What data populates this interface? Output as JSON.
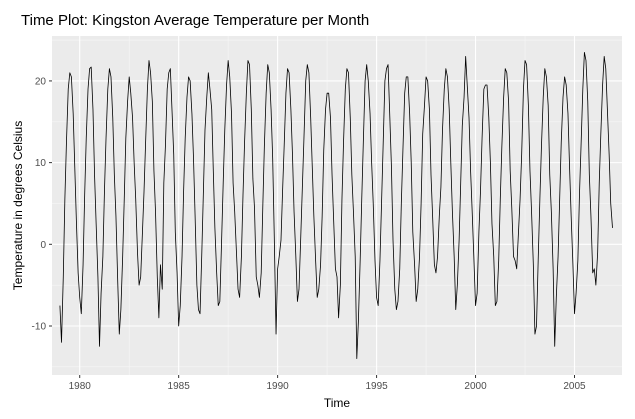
{
  "chart_data": {
    "type": "line",
    "title": "Time Plot: Kingston Average Temperature per Month",
    "xlabel": "Time",
    "ylabel": "Temperature in degrees Celsius",
    "xlim": [
      1978.6,
      2007.4
    ],
    "ylim": [
      -16.0,
      25.5
    ],
    "x_ticks": [
      1980,
      1985,
      1990,
      1995,
      2000,
      2005
    ],
    "x_tick_labels": [
      "1980",
      "1985",
      "1990",
      "1995",
      "2000",
      "2005"
    ],
    "y_ticks": [
      -10,
      0,
      10,
      20
    ],
    "y_tick_labels": [
      "-10",
      "0",
      "10",
      "20"
    ],
    "grid": true,
    "legend": "none",
    "colors": {
      "panel": "#ebebeb",
      "grid_major": "#ffffff",
      "line": "#000000",
      "tick": "#4d4d4d"
    },
    "series": [
      {
        "x": [
          1979.0,
          1979.08,
          1979.17,
          1979.25,
          1979.33,
          1979.42,
          1979.5,
          1979.58,
          1979.67,
          1979.75,
          1979.83,
          1979.92,
          1980.0,
          1980.08,
          1980.17,
          1980.25,
          1980.33,
          1980.42,
          1980.5,
          1980.58,
          1980.67,
          1980.75,
          1980.83,
          1980.92,
          1981.0,
          1981.08,
          1981.17,
          1981.25,
          1981.33,
          1981.42,
          1981.5,
          1981.58,
          1981.67,
          1981.75,
          1981.83,
          1981.92,
          1982.0,
          1982.08,
          1982.17,
          1982.25,
          1982.33,
          1982.42,
          1982.5,
          1982.58,
          1982.67,
          1982.75,
          1982.83,
          1982.92,
          1983.0,
          1983.08,
          1983.17,
          1983.25,
          1983.33,
          1983.42,
          1983.5,
          1983.58,
          1983.67,
          1983.75,
          1983.83,
          1983.92,
          1984.0,
          1984.08,
          1984.17,
          1984.25,
          1984.33,
          1984.42,
          1984.5,
          1984.58,
          1984.67,
          1984.75,
          1984.83,
          1984.92,
          1985.0,
          1985.08,
          1985.17,
          1985.25,
          1985.33,
          1985.42,
          1985.5,
          1985.58,
          1985.67,
          1985.75,
          1985.83,
          1985.92,
          1986.0,
          1986.08,
          1986.17,
          1986.25,
          1986.33,
          1986.42,
          1986.5,
          1986.58,
          1986.67,
          1986.75,
          1986.83,
          1986.92,
          1987.0,
          1987.08,
          1987.17,
          1987.25,
          1987.33,
          1987.42,
          1987.5,
          1987.58,
          1987.67,
          1987.75,
          1987.83,
          1987.92,
          1988.0,
          1988.08,
          1988.17,
          1988.25,
          1988.33,
          1988.42,
          1988.5,
          1988.58,
          1988.67,
          1988.75,
          1988.83,
          1988.92,
          1989.0,
          1989.08,
          1989.17,
          1989.25,
          1989.33,
          1989.42,
          1989.5,
          1989.58,
          1989.67,
          1989.75,
          1989.83,
          1989.92,
          1990.0,
          1990.08,
          1990.17,
          1990.25,
          1990.33,
          1990.42,
          1990.5,
          1990.58,
          1990.67,
          1990.75,
          1990.83,
          1990.92,
          1991.0,
          1991.08,
          1991.17,
          1991.25,
          1991.33,
          1991.42,
          1991.5,
          1991.58,
          1991.67,
          1991.75,
          1991.83,
          1991.92,
          1992.0,
          1992.08,
          1992.17,
          1992.25,
          1992.33,
          1992.42,
          1992.5,
          1992.58,
          1992.67,
          1992.75,
          1992.83,
          1992.92,
          1993.0,
          1993.08,
          1993.17,
          1993.25,
          1993.33,
          1993.42,
          1993.5,
          1993.58,
          1993.67,
          1993.75,
          1993.83,
          1993.92,
          1994.0,
          1994.08,
          1994.17,
          1994.25,
          1994.33,
          1994.42,
          1994.5,
          1994.58,
          1994.67,
          1994.75,
          1994.83,
          1994.92,
          1995.0,
          1995.08,
          1995.17,
          1995.25,
          1995.33,
          1995.42,
          1995.5,
          1995.58,
          1995.67,
          1995.75,
          1995.83,
          1995.92,
          1996.0,
          1996.08,
          1996.17,
          1996.25,
          1996.33,
          1996.42,
          1996.5,
          1996.58,
          1996.67,
          1996.75,
          1996.83,
          1996.92,
          1997.0,
          1997.08,
          1997.17,
          1997.25,
          1997.33,
          1997.42,
          1997.5,
          1997.58,
          1997.67,
          1997.75,
          1997.83,
          1997.92,
          1998.0,
          1998.08,
          1998.17,
          1998.25,
          1998.33,
          1998.42,
          1998.5,
          1998.58,
          1998.67,
          1998.75,
          1998.83,
          1998.92,
          1999.0,
          1999.08,
          1999.17,
          1999.25,
          1999.33,
          1999.42,
          1999.5,
          1999.58,
          1999.67,
          1999.75,
          1999.83,
          1999.92,
          2000.0,
          2000.08,
          2000.17,
          2000.25,
          2000.33,
          2000.42,
          2000.5,
          2000.58,
          2000.67,
          2000.75,
          2000.83,
          2000.92,
          2001.0,
          2001.08,
          2001.17,
          2001.25,
          2001.33,
          2001.42,
          2001.5,
          2001.58,
          2001.67,
          2001.75,
          2001.83,
          2001.92,
          2002.0,
          2002.08,
          2002.17,
          2002.25,
          2002.33,
          2002.42,
          2002.5,
          2002.58,
          2002.67,
          2002.75,
          2002.83,
          2002.92,
          2003.0,
          2003.08,
          2003.17,
          2003.25,
          2003.33,
          2003.42,
          2003.5,
          2003.58,
          2003.67,
          2003.75,
          2003.83,
          2003.92,
          2004.0,
          2004.08,
          2004.17,
          2004.25,
          2004.33,
          2004.42,
          2004.5,
          2004.58,
          2004.67,
          2004.75,
          2004.83,
          2004.92,
          2005.0,
          2005.08,
          2005.17,
          2005.25,
          2005.33,
          2005.42,
          2005.5,
          2005.58,
          2005.67,
          2005.75,
          2005.83,
          2005.92,
          2006.0,
          2006.08,
          2006.17,
          2006.25,
          2006.33,
          2006.42,
          2006.5,
          2006.58,
          2006.67,
          2006.75,
          2006.83,
          2006.92
        ],
        "y": [
          -7.5,
          -12.0,
          -4.0,
          5.5,
          12.5,
          19.0,
          21.0,
          20.5,
          16.0,
          9.5,
          3.0,
          -3.5,
          -6.5,
          -8.5,
          -2.5,
          6.0,
          13.0,
          19.0,
          21.5,
          21.7,
          16.5,
          8.5,
          2.5,
          -4.0,
          -12.5,
          -6.0,
          -1.5,
          6.5,
          13.0,
          19.0,
          21.5,
          20.5,
          15.5,
          8.5,
          3.5,
          -4.5,
          -11.0,
          -8.0,
          -1.5,
          5.5,
          13.0,
          17.5,
          20.5,
          18.5,
          15.5,
          10.0,
          5.5,
          -1.0,
          -5.0,
          -4.0,
          1.5,
          6.5,
          12.5,
          19.0,
          22.5,
          21.0,
          17.5,
          9.0,
          4.0,
          -4.0,
          -9.0,
          -2.5,
          -5.5,
          7.5,
          12.0,
          19.0,
          21.0,
          21.5,
          16.0,
          11.0,
          1.5,
          -3.5,
          -10.0,
          -7.5,
          -1.5,
          6.5,
          13.0,
          18.0,
          20.5,
          20.0,
          16.0,
          10.5,
          3.5,
          -5.0,
          -8.0,
          -8.5,
          -1.0,
          6.5,
          14.0,
          18.0,
          21.0,
          19.0,
          16.5,
          9.0,
          2.0,
          -3.5,
          -7.5,
          -7.0,
          0.5,
          7.5,
          14.0,
          19.5,
          22.5,
          20.5,
          16.0,
          7.5,
          4.0,
          -1.0,
          -5.5,
          -6.5,
          -1.5,
          6.0,
          12.5,
          18.5,
          22.5,
          22.0,
          16.5,
          8.0,
          4.5,
          -4.0,
          -5.0,
          -6.5,
          -3.5,
          4.5,
          12.0,
          18.5,
          22.0,
          21.0,
          16.5,
          10.5,
          1.0,
          -11.0,
          -3.0,
          -1.5,
          0.5,
          6.5,
          12.0,
          18.5,
          21.5,
          21.0,
          16.5,
          11.0,
          4.0,
          -1.5,
          -7.0,
          -5.5,
          1.0,
          7.0,
          13.0,
          20.0,
          22.0,
          21.0,
          15.5,
          9.5,
          3.5,
          -2.0,
          -6.5,
          -5.5,
          -2.5,
          3.5,
          11.5,
          16.5,
          18.5,
          18.5,
          15.5,
          8.5,
          3.0,
          -3.0,
          -4.0,
          -9.0,
          -5.0,
          5.5,
          12.5,
          19.0,
          21.5,
          21.0,
          15.5,
          8.5,
          4.0,
          -1.5,
          -14.0,
          -9.5,
          -2.0,
          5.5,
          12.5,
          20.0,
          22.0,
          20.0,
          16.0,
          10.0,
          5.0,
          -2.0,
          -6.5,
          -7.5,
          -2.0,
          5.0,
          12.0,
          20.0,
          21.5,
          22.0,
          15.5,
          9.5,
          0.5,
          -5.5,
          -8.0,
          -7.0,
          -3.0,
          5.0,
          11.5,
          18.5,
          20.5,
          20.5,
          16.0,
          10.0,
          1.5,
          -2.5,
          -7.0,
          -5.5,
          -1.5,
          5.0,
          13.5,
          17.0,
          20.5,
          20.0,
          16.5,
          8.5,
          3.5,
          -2.5,
          -3.5,
          -1.5,
          3.5,
          7.0,
          14.0,
          19.0,
          21.5,
          20.5,
          16.5,
          10.0,
          4.0,
          -1.5,
          -8.0,
          -5.0,
          0.5,
          7.5,
          14.5,
          18.0,
          23.0,
          19.5,
          15.5,
          9.0,
          4.0,
          -2.0,
          -7.5,
          -6.0,
          1.5,
          6.5,
          13.0,
          19.0,
          19.5,
          19.5,
          15.5,
          10.0,
          2.5,
          -1.5,
          -7.5,
          -7.0,
          -2.0,
          5.5,
          12.0,
          18.0,
          21.5,
          21.0,
          17.5,
          9.0,
          4.5,
          -1.5,
          -2.0,
          -3.0,
          1.5,
          5.5,
          11.0,
          19.0,
          22.5,
          22.0,
          17.0,
          9.0,
          4.0,
          -2.5,
          -11.0,
          -10.0,
          -1.5,
          5.5,
          12.0,
          18.0,
          21.5,
          20.5,
          17.0,
          8.5,
          4.0,
          -3.0,
          -12.5,
          -6.5,
          -1.5,
          5.5,
          12.5,
          18.0,
          20.5,
          19.5,
          16.0,
          9.5,
          3.5,
          -2.5,
          -8.5,
          -6.0,
          -2.0,
          6.0,
          12.0,
          19.0,
          23.5,
          22.5,
          17.5,
          8.5,
          3.5,
          -3.5,
          -3.0,
          -5.0,
          -1.0,
          7.5,
          13.5,
          19.5,
          23.0,
          21.5,
          16.0,
          11.0,
          5.0,
          2.0
        ]
      }
    ]
  }
}
